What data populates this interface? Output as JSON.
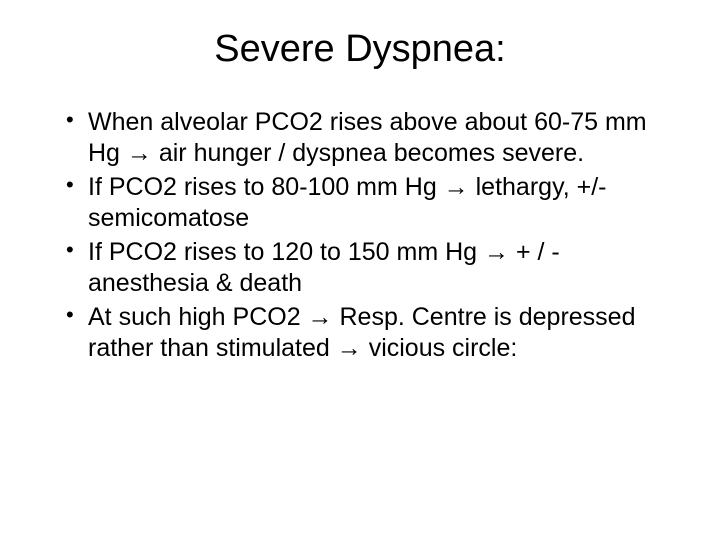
{
  "title": "Severe Dyspnea:",
  "bullets": [
    "When alveolar PCO2 rises above about 60-75 mm Hg → air hunger / dyspnea becomes severe.",
    "If PCO2 rises to 80-100 mm Hg → lethargy, +/- semicomatose",
    "If PCO2 rises to 120 to 150 mm Hg →      + / - anesthesia & death",
    "At such high PCO2 → Resp. Centre is depressed rather than stimulated → vicious circle:"
  ]
}
